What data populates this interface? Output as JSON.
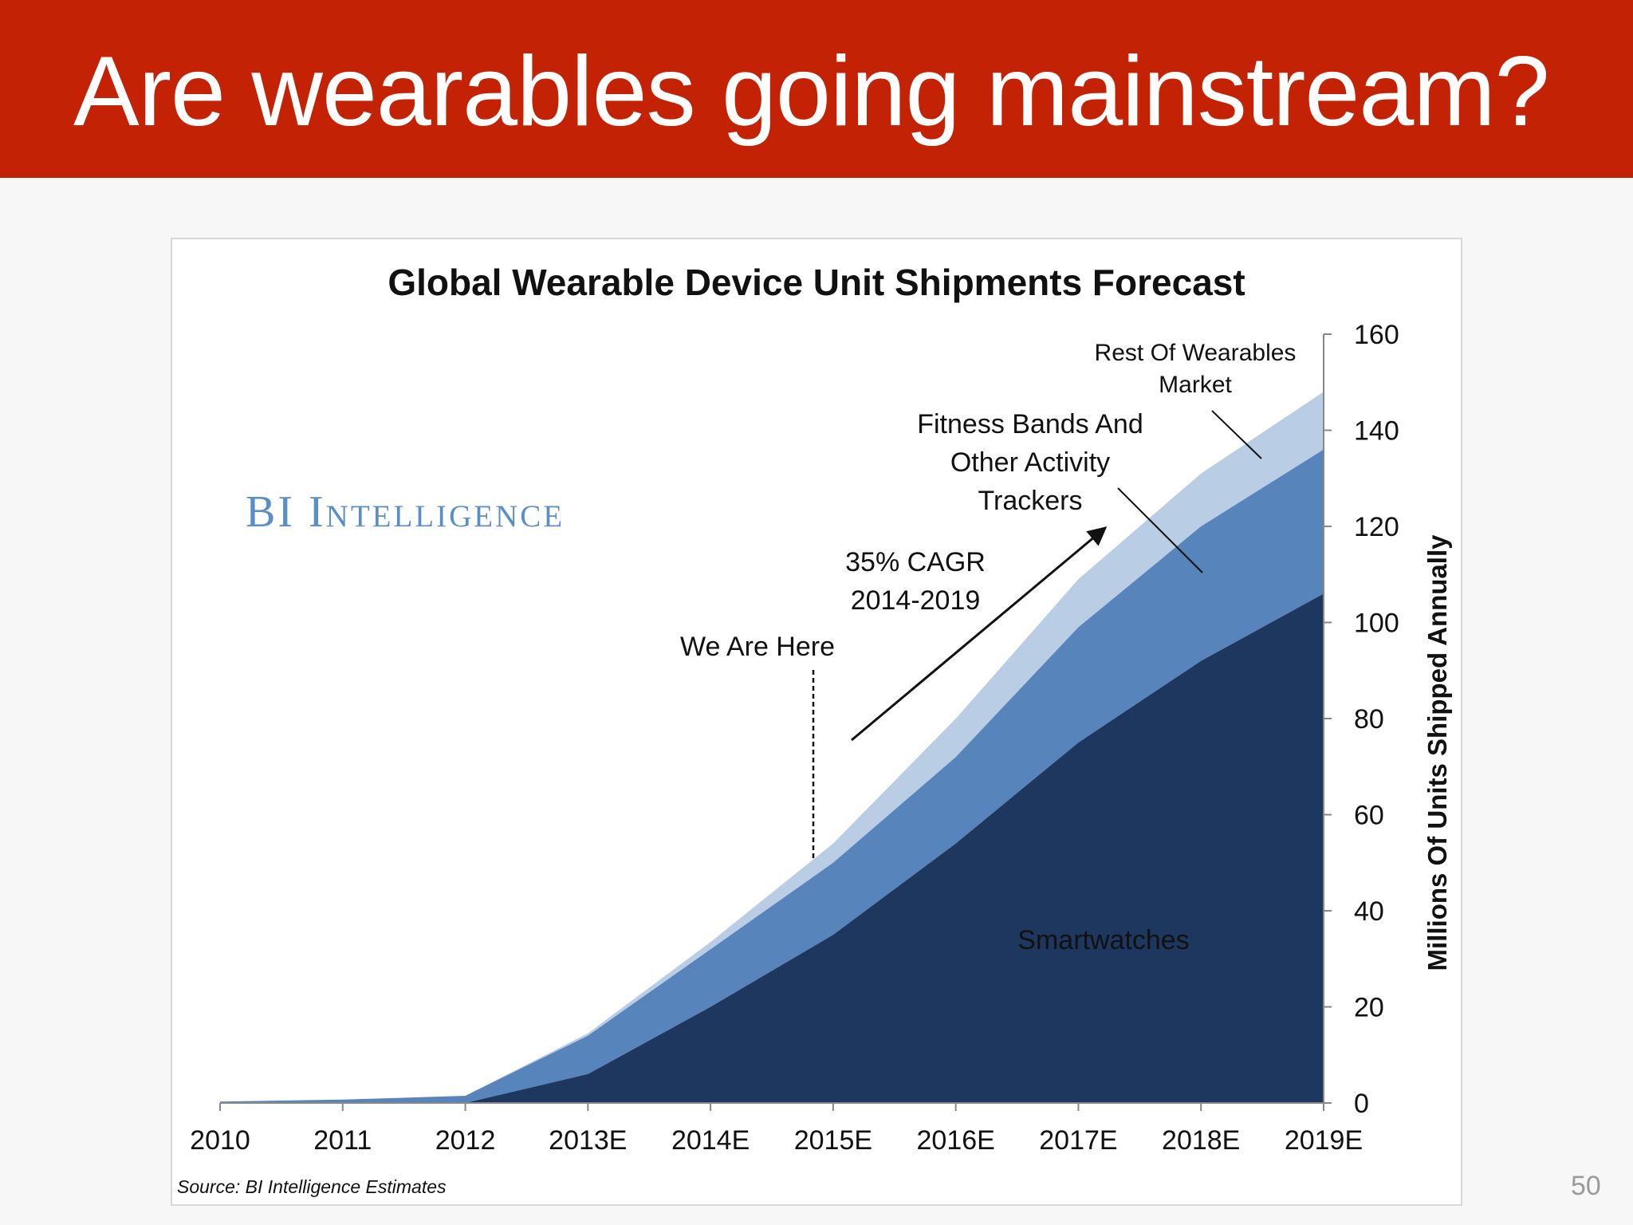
{
  "slide": {
    "title": "Are wearables going mainstream?",
    "page_number": "50"
  },
  "colors": {
    "banner": "#c42205",
    "smartwatches": "#1d375e",
    "fitness": "#5785bb",
    "rest": "#b9cde5"
  },
  "chart_data": {
    "type": "area",
    "stacked": true,
    "title": "Global Wearable Device Unit Shipments Forecast",
    "ylabel": "Millions Of Units Shipped Annually",
    "ylim": [
      0,
      160
    ],
    "yticks": [
      "0",
      "20",
      "40",
      "60",
      "80",
      "100",
      "120",
      "140",
      "160"
    ],
    "categories": [
      "2010",
      "2011",
      "2012",
      "2013E",
      "2014E",
      "2015E",
      "2016E",
      "2017E",
      "2018E",
      "2019E"
    ],
    "series": [
      {
        "name": "Smartwatches",
        "values": [
          0,
          0,
          0,
          6,
          20,
          35,
          54,
          75,
          92,
          106
        ]
      },
      {
        "name": "Fitness Bands And Other Activity Trackers",
        "values": [
          0.3,
          0.7,
          1.5,
          8,
          12,
          15,
          18,
          24,
          28,
          30
        ]
      },
      {
        "name": "Rest Of Wearables Market",
        "values": [
          0,
          0,
          0,
          0.5,
          1.5,
          4,
          8,
          10,
          11,
          12
        ]
      }
    ],
    "annotations": {
      "brand": "BI Intelligence",
      "we_are_here": "We Are Here",
      "cagr_line1": "35% CAGR",
      "cagr_line2": "2014-2019",
      "rest_label_line1": "Rest Of Wearables",
      "rest_label_line2": "Market",
      "fitness_label_line1": "Fitness Bands And",
      "fitness_label_line2": "Other Activity",
      "fitness_label_line3": "Trackers",
      "smartwatches_label": "Smartwatches"
    },
    "source": "Source: BI Intelligence Estimates"
  }
}
